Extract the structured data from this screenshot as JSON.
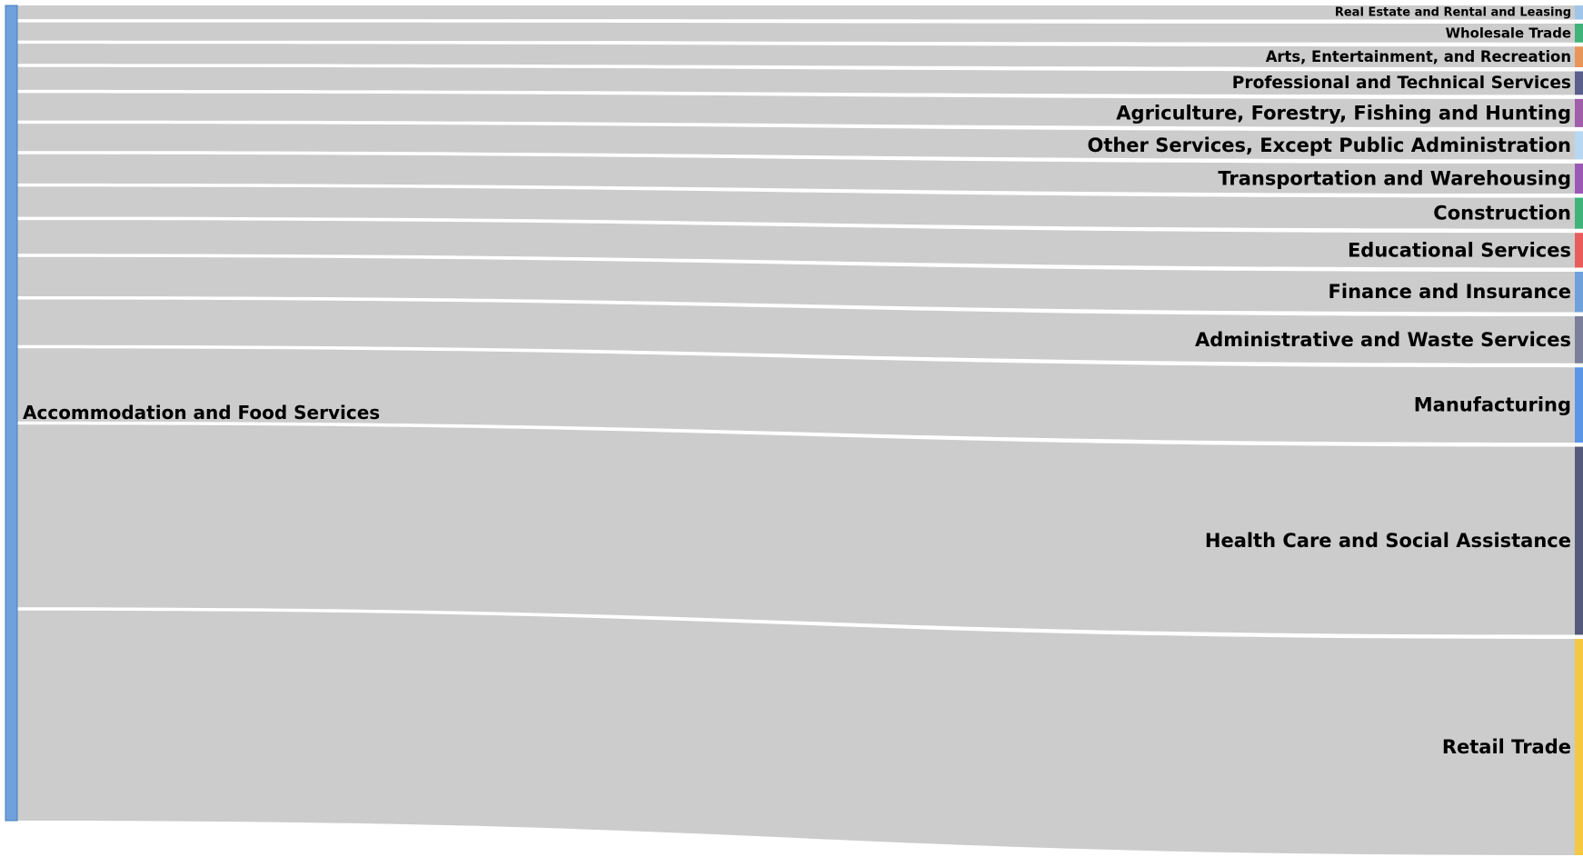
{
  "chart_data": {
    "type": "sankey",
    "source": {
      "name": "Accommodation and Food Services",
      "color": "#6fa0dc"
    },
    "link_color": "#cccccc",
    "targets": [
      {
        "name": "Real Estate and Rental and Leasing",
        "value": 1.5,
        "color": "#9fc5e8"
      },
      {
        "name": "Wholesale Trade",
        "value": 2.0,
        "color": "#3fb37a"
      },
      {
        "name": "Arts, Entertainment, and Recreation",
        "value": 2.2,
        "color": "#e8955a"
      },
      {
        "name": "Professional and Technical Services",
        "value": 2.5,
        "color": "#5a5f8c"
      },
      {
        "name": "Agriculture, Forestry, Fishing and Hunting",
        "value": 3.0,
        "color": "#a05fa8"
      },
      {
        "name": "Other Services, Except Public Administration",
        "value": 3.0,
        "color": "#b7d7f2"
      },
      {
        "name": "Transportation and Warehousing",
        "value": 3.2,
        "color": "#9b59b6"
      },
      {
        "name": "Construction",
        "value": 3.3,
        "color": "#3fb37a"
      },
      {
        "name": "Educational Services",
        "value": 3.7,
        "color": "#e85c5c"
      },
      {
        "name": "Finance and Insurance",
        "value": 4.3,
        "color": "#6fa0dc"
      },
      {
        "name": "Administrative and Waste Services",
        "value": 5.0,
        "color": "#7b7f99"
      },
      {
        "name": "Manufacturing",
        "value": 8.0,
        "color": "#5b95e6"
      },
      {
        "name": "Health Care and Social Assistance",
        "value": 20.0,
        "color": "#555a7a"
      },
      {
        "name": "Retail Trade",
        "value": 23.0,
        "color": "#f4c842"
      }
    ]
  }
}
